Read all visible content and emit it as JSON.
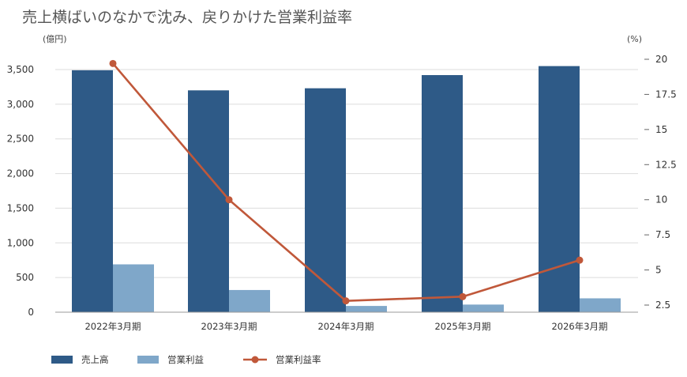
{
  "chart_data": {
    "type": "bar+line",
    "title": "売上横ばいのなかで沈み、戻りかけた営業利益率",
    "left_unit": "(億円)",
    "right_unit": "(%)",
    "categories": [
      "2022年3月期",
      "2023年3月期",
      "2024年3月期",
      "2025年3月期",
      "2026年3月期"
    ],
    "series": [
      {
        "name": "売上高",
        "kind": "bar",
        "axis": "left",
        "color": "#2e5a87",
        "values": [
          3490,
          3200,
          3230,
          3420,
          3550
        ]
      },
      {
        "name": "営業利益",
        "kind": "bar",
        "axis": "left",
        "color": "#7fa7c9",
        "values": [
          690,
          320,
          90,
          110,
          200
        ]
      },
      {
        "name": "営業利益率",
        "kind": "line",
        "axis": "right",
        "color": "#c0583a",
        "values": [
          19.7,
          10.0,
          2.8,
          3.1,
          5.7
        ]
      }
    ],
    "left_axis": {
      "min": 0,
      "max": 3500,
      "ticks": [
        "0",
        "500",
        "1,000",
        "1,500",
        "2,000",
        "2,500",
        "3,000",
        "3,500"
      ]
    },
    "right_axis": {
      "min": 2.5,
      "max": 20,
      "ticks": [
        "2.5",
        "5",
        "7.5",
        "10",
        "12.5",
        "15",
        "17.5",
        "20"
      ]
    },
    "grid": true,
    "legend_position": "bottom-left"
  }
}
